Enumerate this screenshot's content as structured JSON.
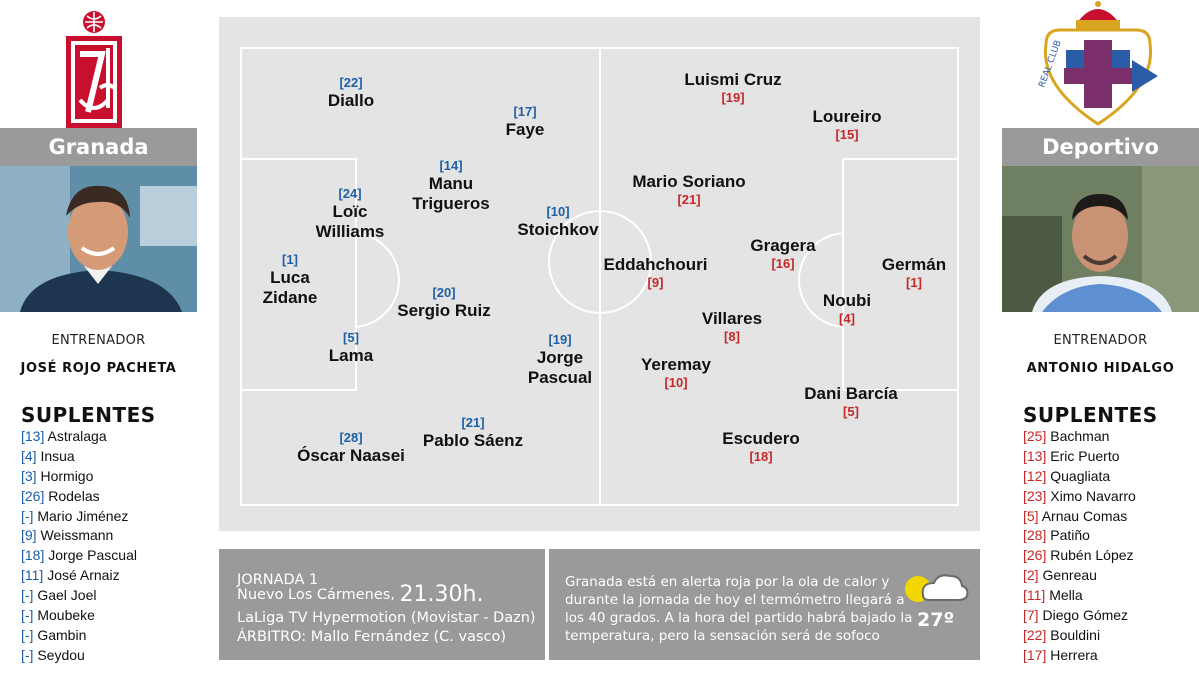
{
  "home": {
    "team": "Granada",
    "coach_title": "ENTRENADOR",
    "coach_name": "JOSÉ ROJO PACHETA",
    "subs_title": "SUPLENTES",
    "subs": [
      {
        "num": "[13]",
        "name": "Astralaga"
      },
      {
        "num": "[4]",
        "name": "Insua"
      },
      {
        "num": "[3]",
        "name": "Hormigo"
      },
      {
        "num": "[26]",
        "name": "Rodelas"
      },
      {
        "num": "[-]",
        "name": "Mario Jiménez"
      },
      {
        "num": "[9]",
        "name": "Weissmann"
      },
      {
        "num": "[18]",
        "name": "Jorge Pascual"
      },
      {
        "num": "[11]",
        "name": "José Arnaiz"
      },
      {
        "num": "[-]",
        "name": "Gael Joel"
      },
      {
        "num": "[-]",
        "name": "Moubeke"
      },
      {
        "num": "[-]",
        "name": "Gambin"
      },
      {
        "num": "[-]",
        "name": "Seydou"
      }
    ],
    "lineup": [
      {
        "num": "[22]",
        "name": "Diallo"
      },
      {
        "num": "[17]",
        "name": "Faye"
      },
      {
        "num": "[14]",
        "name": "Manu Trigueros"
      },
      {
        "num": "[24]",
        "name": "Loïc Williams"
      },
      {
        "num": "[10]",
        "name": "Stoichkov"
      },
      {
        "num": "[1]",
        "name": "Luca Zidane"
      },
      {
        "num": "[20]",
        "name": "Sergio Ruiz"
      },
      {
        "num": "[5]",
        "name": "Lama"
      },
      {
        "num": "[19]",
        "name": "Jorge Pascual"
      },
      {
        "num": "[21]",
        "name": "Pablo Sáenz"
      },
      {
        "num": "[28]",
        "name": "Óscar Naasei"
      }
    ]
  },
  "away": {
    "team": "Deportivo",
    "coach_title": "ENTRENADOR",
    "coach_name": "ANTONIO HIDALGO",
    "subs_title": "SUPLENTES",
    "subs": [
      {
        "num": "[25]",
        "name": "Bachman"
      },
      {
        "num": "[13]",
        "name": "Eric Puerto"
      },
      {
        "num": "[12]",
        "name": "Quagliata"
      },
      {
        "num": "[23]",
        "name": "Ximo Navarro"
      },
      {
        "num": "[5]",
        "name": "Arnau Comas"
      },
      {
        "num": "[28]",
        "name": "Patiño"
      },
      {
        "num": "[26]",
        "name": "Rubén López"
      },
      {
        "num": "[2]",
        "name": "Genreau"
      },
      {
        "num": "[11]",
        "name": "Mella"
      },
      {
        "num": "[7]",
        "name": "Diego Gómez"
      },
      {
        "num": "[22]",
        "name": "Bouldini"
      },
      {
        "num": "[17]",
        "name": "Herrera"
      }
    ],
    "lineup": [
      {
        "num": "[19]",
        "name": "Luismi Cruz"
      },
      {
        "num": "[15]",
        "name": "Loureiro"
      },
      {
        "num": "[21]",
        "name": "Mario Soriano"
      },
      {
        "num": "[9]",
        "name": "Eddahchouri"
      },
      {
        "num": "[16]",
        "name": "Gragera"
      },
      {
        "num": "[1]",
        "name": "Germán"
      },
      {
        "num": "[4]",
        "name": "Noubi"
      },
      {
        "num": "[8]",
        "name": "Villares"
      },
      {
        "num": "[10]",
        "name": "Yeremay"
      },
      {
        "num": "[5]",
        "name": "Dani Barcía"
      },
      {
        "num": "[18]",
        "name": "Escudero"
      }
    ]
  },
  "match": {
    "jornada": "JORNADA 1",
    "venue": "Nuevo Los Cármenes,",
    "time": "21.30h.",
    "tv": "LaLiga TV Hypermotion (Movistar - Dazn)",
    "referee": "ÁRBITRO: Mallo Fernández (C. vasco)"
  },
  "weather": {
    "lines": [
      "Granada está en alerta roja por la ola de calor y",
      "durante la jornada de hoy el termómetro llegará a",
      "los 40 grados. A la hora del partido habrá bajado la",
      "temperatura, pero la sensación será de sofoco"
    ],
    "temperature": "27º",
    "icon": "sun-cloud-icon"
  },
  "colors": {
    "home_accent": "#1f5fa8",
    "away_accent": "#c62828",
    "banner": "#9a9a9a",
    "pitch": "#e4e4e4"
  }
}
